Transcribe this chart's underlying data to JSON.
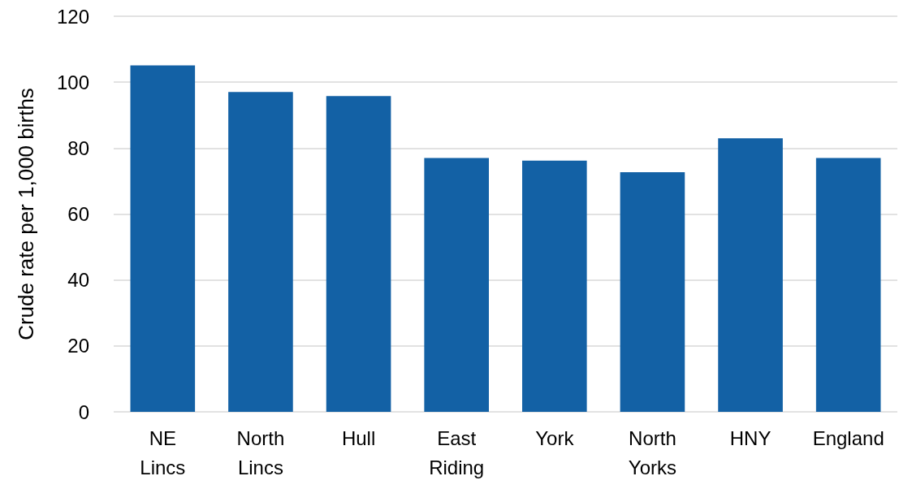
{
  "chart_data": {
    "type": "bar",
    "ylabel": "Crude rate per 1,000 births",
    "categories": [
      "NE Lincs",
      "North Lincs",
      "Hull",
      "East Riding",
      "York",
      "North Yorks",
      "HNY",
      "England"
    ],
    "values": [
      105.1,
      97.0,
      95.8,
      77.0,
      76.2,
      72.7,
      83.0,
      77.0
    ],
    "color": "#1361a5",
    "ylim": [
      0,
      120
    ],
    "yticks": [
      0,
      20,
      40,
      60,
      80,
      100,
      120
    ],
    "grid": "y"
  }
}
